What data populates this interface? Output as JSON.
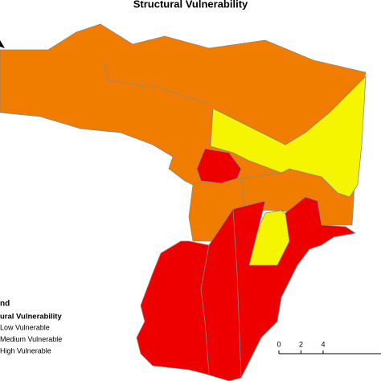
{
  "title": "Structural Vulnerability",
  "legend": {
    "heading": "nd",
    "subheading": "ural Vulnerability",
    "items": [
      {
        "label": "Low Vulnerable",
        "color": "#f5f500"
      },
      {
        "label": "Medium Vulnerable",
        "color": "#f07c00"
      },
      {
        "label": "High Vulnerable",
        "color": "#ee0000"
      }
    ]
  },
  "scale_bar": {
    "ticks": [
      0,
      2,
      4
    ]
  }
}
